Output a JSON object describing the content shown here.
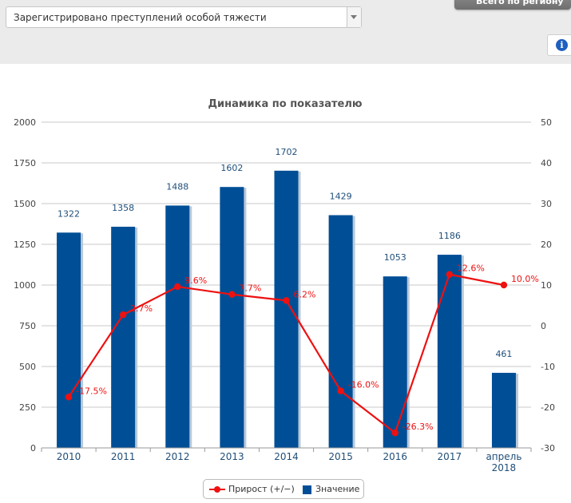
{
  "filter": {
    "selected": "Зарегистрировано преступлений особой тяжести"
  },
  "top_button": {
    "label": "Всего по региону"
  },
  "info_button": {
    "icon": "info-icon",
    "glyph": "i"
  },
  "colors": {
    "bar": "#004f96",
    "bar_shadow": "#b9c9da",
    "line": "#ee1111",
    "bar_label": "#1f4e79",
    "axis_text": "#444444",
    "x_tick_text": "#1f4e79",
    "grid": "#c8c8c8"
  },
  "chart_data": {
    "type": "bar",
    "title": "Динамика по показателю",
    "categories": [
      "2010",
      "2011",
      "2012",
      "2013",
      "2014",
      "2015",
      "2016",
      "2017",
      "апрель 2018"
    ],
    "category_lines": [
      [
        "2010"
      ],
      [
        "2011"
      ],
      [
        "2012"
      ],
      [
        "2013"
      ],
      [
        "2014"
      ],
      [
        "2015"
      ],
      [
        "2016"
      ],
      [
        "2017"
      ],
      [
        "апрель",
        "2018"
      ]
    ],
    "ylim": [
      0,
      2000
    ],
    "yticks": [
      0,
      250,
      500,
      750,
      1000,
      1250,
      1500,
      1750,
      2000
    ],
    "y2lim": [
      -30,
      50
    ],
    "y2ticks": [
      -30,
      -20,
      -10,
      0,
      10,
      20,
      30,
      40,
      50
    ],
    "grid": true,
    "legend_position": "bottom-center",
    "series": [
      {
        "name": "Значение",
        "type": "bar",
        "axis": "left",
        "values": [
          1322,
          1358,
          1488,
          1602,
          1702,
          1429,
          1053,
          1186,
          461
        ]
      },
      {
        "name": "Прирост (+/−)",
        "type": "line",
        "axis": "right",
        "values": [
          -17.5,
          2.7,
          9.6,
          7.7,
          6.2,
          -16.0,
          -26.3,
          12.6,
          10.0
        ],
        "labels": [
          "-17.5%",
          "2.7%",
          "9.6%",
          "7.7%",
          "6.2%",
          "-16.0%",
          "-26.3%",
          "12.6%",
          "10.0%"
        ]
      }
    ]
  }
}
